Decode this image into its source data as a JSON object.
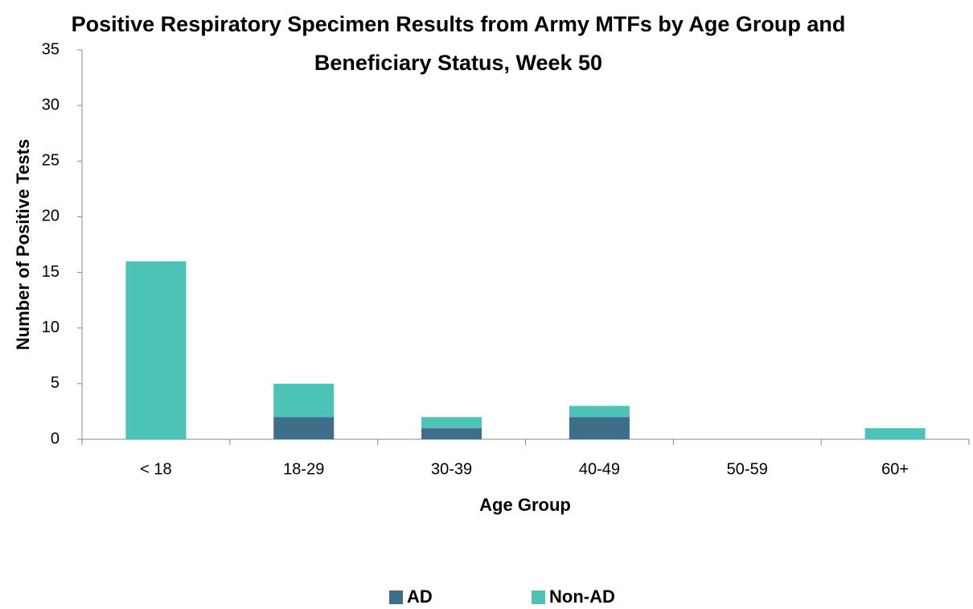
{
  "chart_data": {
    "type": "stacked_bar",
    "title": "Positive Respiratory Specimen Results from Army MTFs by Age Group and Beneficiary Status, Week 50",
    "x_label": "Age Group",
    "y_label": "Number of Positive Tests",
    "categories": [
      "< 18",
      "18-29",
      "30-39",
      "40-49",
      "50-59",
      "60+"
    ],
    "series": [
      {
        "name": "AD",
        "color": "#3d6e8a",
        "values": [
          0,
          2,
          1,
          2,
          0,
          0
        ]
      },
      {
        "name": "Non-AD",
        "color": "#4dc3b8",
        "values": [
          16,
          3,
          1,
          1,
          0,
          1
        ]
      }
    ],
    "ylim": [
      0,
      35
    ],
    "yticks": [
      0,
      5,
      10,
      15,
      20,
      25,
      30,
      35
    ],
    "legend": "bottom"
  }
}
